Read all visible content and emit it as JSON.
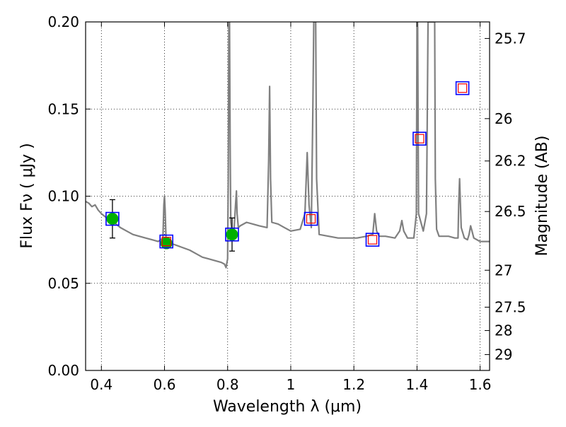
{
  "chart_data": {
    "type": "line",
    "xlabel": "Wavelength  λ (μm)",
    "ylabel": "Flux  Fν  ( μJy )",
    "ylabel_right": "Magnitude (AB)",
    "xlim": [
      0.35,
      1.63
    ],
    "ylim": [
      0.0,
      0.2
    ],
    "grid": true,
    "x_ticks": [
      0.4,
      0.6,
      0.8,
      1.0,
      1.2,
      1.4,
      1.6
    ],
    "x_tick_labels": [
      "0.4",
      "0.6",
      "0.8",
      "1",
      "1.2",
      "1.4",
      "1.6"
    ],
    "y_ticks": [
      0.0,
      0.05,
      0.1,
      0.15,
      0.2
    ],
    "y_tick_labels": [
      "0.00",
      "0.05",
      "0.10",
      "0.15",
      "0.20"
    ],
    "magnitude_ticks": [
      {
        "label": "25.7",
        "flux": 0.1905
      },
      {
        "label": "26",
        "flux": 0.1445
      },
      {
        "label": "26.2",
        "flux": 0.1202
      },
      {
        "label": "26.5",
        "flux": 0.0912
      },
      {
        "label": "27",
        "flux": 0.0575
      },
      {
        "label": "27.5",
        "flux": 0.0363
      },
      {
        "label": "28",
        "flux": 0.0229
      },
      {
        "label": "29",
        "flux": 0.0091
      }
    ],
    "colors": {
      "model": "#808080",
      "observed": "#00b000",
      "model_box": "#0000ff",
      "synthetic": "#ff0000",
      "errorbar": "#000000",
      "grid": "#000000"
    },
    "series": [
      {
        "kind": "model_spectrum",
        "x": [
          0.35,
          0.36,
          0.37,
          0.38,
          0.39,
          0.4,
          0.42,
          0.44,
          0.46,
          0.48,
          0.5,
          0.52,
          0.54,
          0.56,
          0.58,
          0.595,
          0.598,
          0.6,
          0.602,
          0.605,
          0.62,
          0.65,
          0.68,
          0.7,
          0.72,
          0.74,
          0.76,
          0.78,
          0.79,
          0.795,
          0.8,
          0.802,
          0.804,
          0.806,
          0.808,
          0.81,
          0.815,
          0.82,
          0.825,
          0.828,
          0.83,
          0.834,
          0.84,
          0.86,
          0.88,
          0.9,
          0.925,
          0.93,
          0.933,
          0.936,
          0.94,
          0.96,
          0.98,
          1.0,
          1.03,
          1.045,
          1.052,
          1.058,
          1.065,
          1.07,
          1.073,
          1.076,
          1.079,
          1.082,
          1.09,
          1.12,
          1.15,
          1.18,
          1.21,
          1.24,
          1.26,
          1.266,
          1.272,
          1.28,
          1.3,
          1.33,
          1.345,
          1.352,
          1.358,
          1.37,
          1.39,
          1.398,
          1.4,
          1.402,
          1.405,
          1.42,
          1.43,
          1.435,
          1.44,
          1.445,
          1.45,
          1.456,
          1.458,
          1.462,
          1.47,
          1.5,
          1.52,
          1.53,
          1.532,
          1.535,
          1.54,
          1.55,
          1.56,
          1.565,
          1.57,
          1.58,
          1.6,
          1.63
        ],
        "y": [
          0.097,
          0.096,
          0.094,
          0.095,
          0.092,
          0.09,
          0.087,
          0.085,
          0.082,
          0.08,
          0.078,
          0.077,
          0.076,
          0.075,
          0.074,
          0.076,
          0.095,
          0.1,
          0.092,
          0.074,
          0.073,
          0.071,
          0.069,
          0.067,
          0.065,
          0.064,
          0.063,
          0.062,
          0.061,
          0.059,
          0.064,
          0.11,
          0.2,
          0.2,
          0.13,
          0.085,
          0.079,
          0.08,
          0.095,
          0.103,
          0.09,
          0.082,
          0.083,
          0.085,
          0.084,
          0.083,
          0.082,
          0.12,
          0.163,
          0.11,
          0.085,
          0.084,
          0.082,
          0.08,
          0.081,
          0.09,
          0.125,
          0.095,
          0.082,
          0.15,
          0.2,
          0.2,
          0.2,
          0.11,
          0.078,
          0.077,
          0.076,
          0.076,
          0.076,
          0.077,
          0.078,
          0.09,
          0.08,
          0.077,
          0.077,
          0.076,
          0.08,
          0.086,
          0.08,
          0.076,
          0.076,
          0.09,
          0.2,
          0.2,
          0.09,
          0.08,
          0.09,
          0.2,
          0.2,
          0.2,
          0.2,
          0.2,
          0.11,
          0.081,
          0.077,
          0.077,
          0.076,
          0.076,
          0.095,
          0.11,
          0.082,
          0.076,
          0.075,
          0.078,
          0.083,
          0.076,
          0.074,
          0.074
        ]
      },
      {
        "kind": "observed_photometry",
        "points": [
          {
            "x": 0.435,
            "y": 0.087,
            "yerr": 0.011
          },
          {
            "x": 0.606,
            "y": 0.073
          },
          {
            "x": 0.814,
            "y": 0.078,
            "yerr": 0.0095
          }
        ]
      },
      {
        "kind": "model_photometry",
        "points": [
          {
            "x": 0.435,
            "y": 0.087
          },
          {
            "x": 0.606,
            "y": 0.074
          },
          {
            "x": 0.814,
            "y": 0.078
          },
          {
            "x": 1.064,
            "y": 0.087
          },
          {
            "x": 1.259,
            "y": 0.075
          },
          {
            "x": 1.408,
            "y": 0.133
          },
          {
            "x": 1.544,
            "y": 0.162
          }
        ]
      },
      {
        "kind": "synthetic_photometry",
        "points": [
          {
            "x": 0.606,
            "y": 0.074
          },
          {
            "x": 1.064,
            "y": 0.087
          },
          {
            "x": 1.259,
            "y": 0.075
          },
          {
            "x": 1.408,
            "y": 0.133
          },
          {
            "x": 1.544,
            "y": 0.162
          }
        ]
      }
    ]
  }
}
